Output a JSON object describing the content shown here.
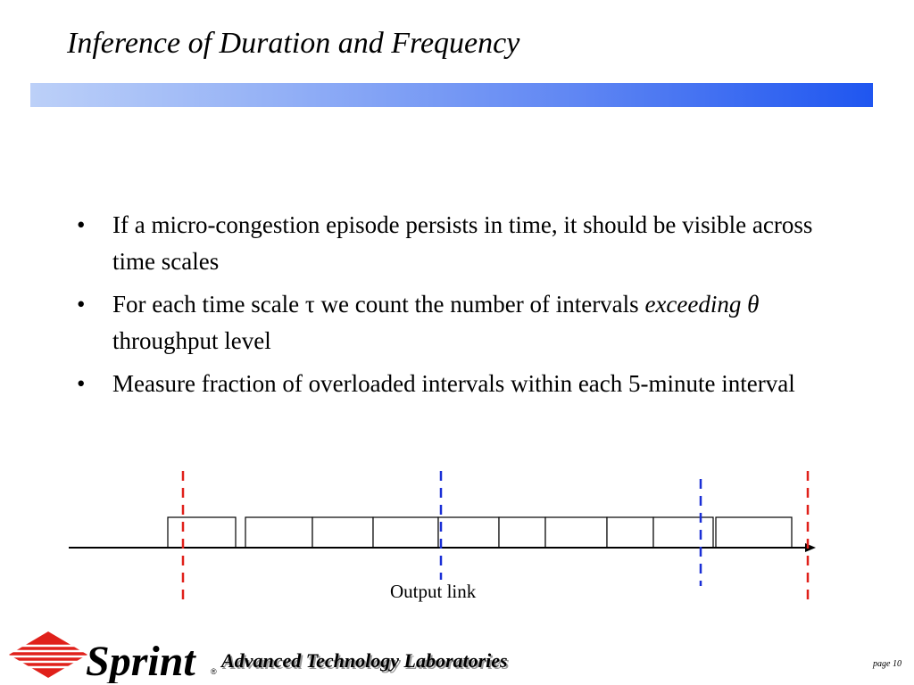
{
  "slide": {
    "title": "Inference of Duration and Frequency",
    "bullets": [
      {
        "text": "If a micro-congestion episode persists in time, it should be visible across time scales"
      },
      {
        "pre": "For each time scale ",
        "tau": "τ",
        "mid": " we count the number of intervals ",
        "em": "exceeding θ",
        "post": " throughput level"
      },
      {
        "text": "Measure fraction of overloaded intervals within each 5-minute interval"
      }
    ],
    "bullet_glyph": "•"
  },
  "diagram": {
    "link_label": "Output link",
    "colors": {
      "red_marker": "#e0201a",
      "blue_marker": "#1a2fd6",
      "axis": "#000000",
      "box_border": "#000000"
    },
    "title_bar_colors": [
      "#bcd0f8",
      "#1f56f0"
    ]
  },
  "footer": {
    "brand": "Sprint",
    "registered": "®",
    "lab": "Advanced Technology Laboratories",
    "page": "page 10",
    "logo_color": "#e0201a"
  }
}
